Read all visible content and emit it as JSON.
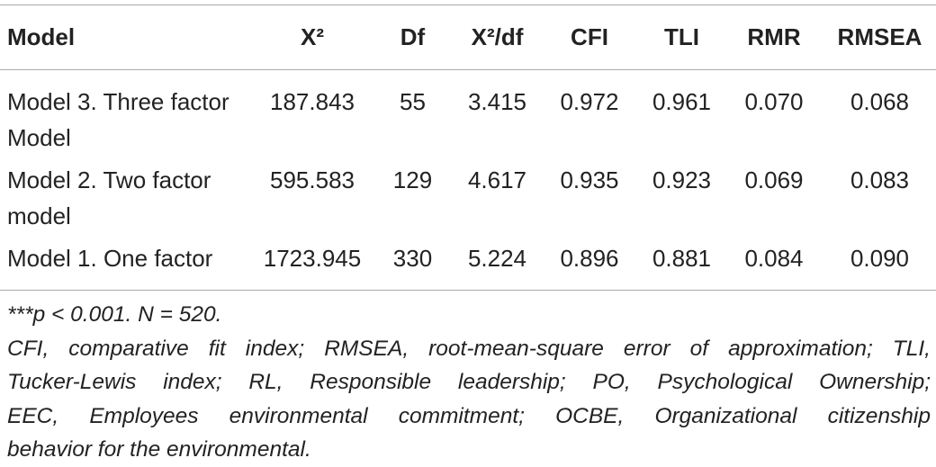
{
  "table": {
    "header": [
      "Model",
      "X²",
      "Df",
      "X²/df",
      "CFI",
      "TLI",
      "RMR",
      "RMSEA"
    ],
    "rows": [
      [
        "Model 3. Three factor Model",
        "187.843",
        "55",
        "3.415",
        "0.972",
        "0.961",
        "0.070",
        "0.068"
      ],
      [
        "Model 2. Two factor model",
        "595.583",
        "129",
        "4.617",
        "0.935",
        "0.923",
        "0.069",
        "0.083"
      ],
      [
        "Model 1. One factor",
        "1723.945",
        "330",
        "5.224",
        "0.896",
        "0.881",
        "0.084",
        "0.090"
      ]
    ]
  },
  "notes": [
    "***p < 0.001. N = 520.",
    "CFI, comparative fit index; RMSEA, root-mean-square error of approximation; TLI,",
    "Tucker-Lewis index; RL, Responsible leadership; PO, Psychological Ownership;",
    "EEC, Employees environmental commitment; OCBE, Organizational citizenship",
    "behavior for the environmental."
  ]
}
